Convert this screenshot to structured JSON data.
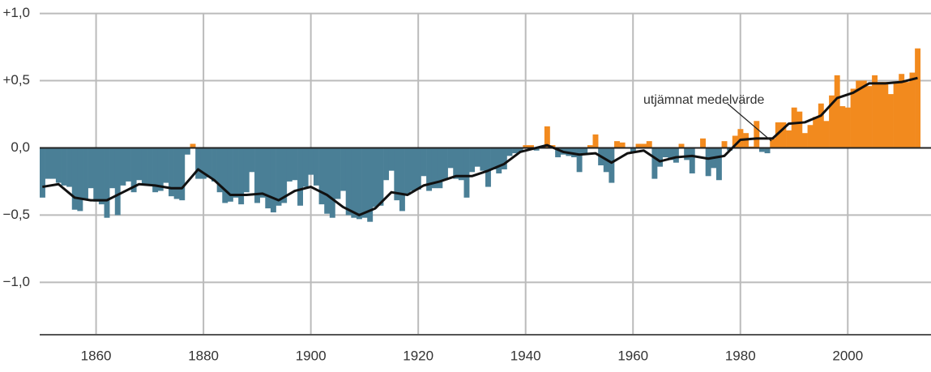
{
  "chart_data": {
    "type": "bar",
    "annotation": "utjämnat medelvärde",
    "x": [
      1850,
      1851,
      1852,
      1853,
      1854,
      1855,
      1856,
      1857,
      1858,
      1859,
      1860,
      1861,
      1862,
      1863,
      1864,
      1865,
      1866,
      1867,
      1868,
      1869,
      1870,
      1871,
      1872,
      1873,
      1874,
      1875,
      1876,
      1877,
      1878,
      1879,
      1880,
      1881,
      1882,
      1883,
      1884,
      1885,
      1886,
      1887,
      1888,
      1889,
      1890,
      1891,
      1892,
      1893,
      1894,
      1895,
      1896,
      1897,
      1898,
      1899,
      1900,
      1901,
      1902,
      1903,
      1904,
      1905,
      1906,
      1907,
      1908,
      1909,
      1910,
      1911,
      1912,
      1913,
      1914,
      1915,
      1916,
      1917,
      1918,
      1919,
      1920,
      1921,
      1922,
      1923,
      1924,
      1925,
      1926,
      1927,
      1928,
      1929,
      1930,
      1931,
      1932,
      1933,
      1934,
      1935,
      1936,
      1937,
      1938,
      1939,
      1940,
      1941,
      1942,
      1943,
      1944,
      1945,
      1946,
      1947,
      1948,
      1949,
      1950,
      1951,
      1952,
      1953,
      1954,
      1955,
      1956,
      1957,
      1958,
      1959,
      1960,
      1961,
      1962,
      1963,
      1964,
      1965,
      1966,
      1967,
      1968,
      1969,
      1970,
      1971,
      1972,
      1973,
      1974,
      1975,
      1976,
      1977,
      1978,
      1979,
      1980,
      1981,
      1982,
      1983,
      1984,
      1985,
      1986,
      1987,
      1988,
      1989,
      1990,
      1991,
      1992,
      1993,
      1994,
      1995,
      1996,
      1997,
      1998,
      1999,
      2000,
      2001,
      2002,
      2003,
      2004,
      2005,
      2006,
      2007,
      2008,
      2009,
      2010,
      2011,
      2012,
      2013
    ],
    "values": [
      -0.37,
      -0.23,
      -0.23,
      -0.26,
      -0.28,
      -0.29,
      -0.46,
      -0.47,
      -0.38,
      -0.3,
      -0.4,
      -0.42,
      -0.52,
      -0.3,
      -0.5,
      -0.28,
      -0.25,
      -0.33,
      -0.24,
      -0.27,
      -0.28,
      -0.33,
      -0.32,
      -0.26,
      -0.36,
      -0.38,
      -0.39,
      -0.05,
      0.03,
      -0.23,
      -0.23,
      -0.22,
      -0.25,
      -0.33,
      -0.41,
      -0.4,
      -0.37,
      -0.42,
      -0.33,
      -0.18,
      -0.41,
      -0.37,
      -0.45,
      -0.48,
      -0.43,
      -0.41,
      -0.25,
      -0.24,
      -0.43,
      -0.29,
      -0.2,
      -0.28,
      -0.42,
      -0.49,
      -0.52,
      -0.38,
      -0.32,
      -0.5,
      -0.52,
      -0.53,
      -0.52,
      -0.55,
      -0.44,
      -0.43,
      -0.24,
      -0.17,
      -0.39,
      -0.47,
      -0.35,
      -0.32,
      -0.31,
      -0.21,
      -0.32,
      -0.3,
      -0.3,
      -0.24,
      -0.15,
      -0.23,
      -0.24,
      -0.37,
      -0.18,
      -0.14,
      -0.17,
      -0.29,
      -0.16,
      -0.19,
      -0.16,
      -0.06,
      -0.04,
      -0.03,
      0.02,
      0.02,
      -0.02,
      0,
      0.16,
      0.02,
      -0.07,
      -0.05,
      -0.06,
      -0.07,
      -0.18,
      -0.04,
      0.02,
      0.1,
      -0.13,
      -0.18,
      -0.26,
      0.05,
      0.04,
      0,
      -0.03,
      0.03,
      0.03,
      0.05,
      -0.23,
      -0.14,
      -0.07,
      -0.09,
      -0.11,
      0.03,
      -0.09,
      -0.19,
      0,
      0.07,
      -0.21,
      -0.15,
      -0.24,
      0.05,
      -0.02,
      0.09,
      0.14,
      0.11,
      0.01,
      0.2,
      -0.03,
      -0.04,
      0.07,
      0.19,
      0.19,
      0.13,
      0.3,
      0.27,
      0.11,
      0.17,
      0.23,
      0.33,
      0.2,
      0.39,
      0.54,
      0.31,
      0.3,
      0.44,
      0.5,
      0.5,
      0.46,
      0.54,
      0.49,
      0.49,
      0.4,
      0.49,
      0.55,
      0.49,
      0.56,
      0.74
    ],
    "color_negative": "#4a7f96",
    "color_positive": "#f28a1e",
    "smooth": {
      "color": "#111111",
      "x": [
        1850,
        1853,
        1856,
        1859,
        1862,
        1865,
        1868,
        1871,
        1874,
        1876,
        1879,
        1882,
        1885,
        1888,
        1891,
        1894,
        1897,
        1900,
        1903,
        1906,
        1909,
        1912,
        1915,
        1918,
        1921,
        1924,
        1927,
        1930,
        1933,
        1936,
        1939,
        1942,
        1944,
        1947,
        1950,
        1953,
        1956,
        1959,
        1962,
        1965,
        1968,
        1971,
        1974,
        1977,
        1980,
        1983,
        1986,
        1989,
        1992,
        1995,
        1998,
        2001,
        2004,
        2007,
        2010,
        2013
      ],
      "values": [
        -0.29,
        -0.27,
        -0.37,
        -0.39,
        -0.39,
        -0.33,
        -0.27,
        -0.28,
        -0.3,
        -0.3,
        -0.16,
        -0.24,
        -0.35,
        -0.35,
        -0.34,
        -0.39,
        -0.32,
        -0.29,
        -0.35,
        -0.44,
        -0.5,
        -0.45,
        -0.33,
        -0.35,
        -0.28,
        -0.25,
        -0.21,
        -0.21,
        -0.17,
        -0.12,
        -0.03,
        0,
        0.02,
        -0.03,
        -0.05,
        -0.04,
        -0.11,
        -0.04,
        -0.02,
        -0.1,
        -0.07,
        -0.06,
        -0.08,
        -0.06,
        0.06,
        0.07,
        0.07,
        0.18,
        0.19,
        0.24,
        0.37,
        0.41,
        0.48,
        0.48,
        0.49,
        0.52
      ]
    },
    "xlim": [
      1849.5,
      2015.5
    ],
    "xticks": [
      1860,
      1880,
      1900,
      1920,
      1940,
      1960,
      1980,
      2000
    ],
    "ylim": [
      -1.39,
      1.1
    ],
    "yticks": [
      {
        "value": 1,
        "label": "+1,0"
      },
      {
        "value": 0.5,
        "label": "+0,5"
      },
      {
        "value": 0,
        "label": "0,0"
      },
      {
        "value": -0.5,
        "label": "−0,5"
      },
      {
        "value": -1,
        "label": "−1,0"
      }
    ],
    "grid": true
  }
}
